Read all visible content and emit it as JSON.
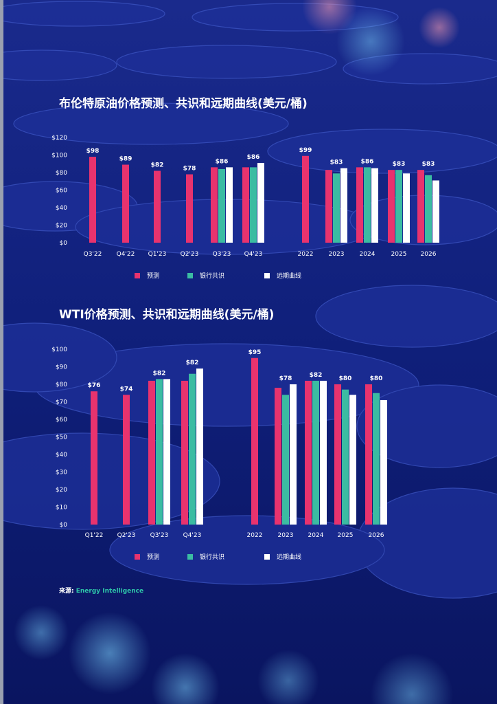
{
  "colors": {
    "forecast": "#e8336e",
    "consensus": "#3bbca2",
    "forward": "#ffffff"
  },
  "source": {
    "label": "来源:",
    "value": "Energy Intelligence"
  },
  "chart_data": [
    {
      "type": "bar",
      "title": "布伦特原油价格预测、共识和远期曲线(美元/桶)",
      "categories": [
        "Q3'22",
        "Q4'22",
        "Q1'23",
        "Q2'23",
        "Q3'23",
        "Q4'23",
        "2022",
        "2023",
        "2024",
        "2025",
        "2026"
      ],
      "yticks": [
        "$0",
        "$20",
        "$40",
        "$60",
        "$80",
        "$100",
        "$120"
      ],
      "ylim": [
        0,
        120
      ],
      "series": [
        {
          "name": "预测",
          "values": [
            98,
            89,
            82,
            78,
            86,
            86,
            99,
            83,
            86,
            83,
            83
          ]
        },
        {
          "name": "银行共识",
          "values": [
            null,
            null,
            null,
            null,
            84,
            86,
            null,
            79,
            86,
            83,
            77
          ]
        },
        {
          "name": "远期曲线",
          "values": [
            null,
            null,
            null,
            null,
            86,
            91,
            null,
            85,
            85,
            79,
            71
          ]
        }
      ],
      "data_labels": [
        "$98",
        "$89",
        "$82",
        "$78",
        "$86",
        "$86",
        "$99",
        "$83",
        "$86",
        "$83",
        "$83"
      ],
      "legend": "bottom"
    },
    {
      "type": "bar",
      "title": "WTI价格预测、共识和远期曲线(美元/桶)",
      "categories": [
        "Q1'22",
        "Q2'23",
        "Q3'23",
        "Q4'23",
        "2022",
        "2023",
        "2024",
        "2025",
        "2026"
      ],
      "yticks": [
        "$0",
        "$10",
        "$20",
        "$30",
        "$40",
        "$50",
        "$60",
        "$70",
        "$80",
        "$90",
        "$100"
      ],
      "ylim": [
        0,
        100
      ],
      "series": [
        {
          "name": "预测",
          "values": [
            76,
            74,
            82,
            82,
            95,
            78,
            82,
            80,
            80
          ]
        },
        {
          "name": "银行共识",
          "values": [
            null,
            null,
            83,
            86,
            null,
            74,
            82,
            77,
            75
          ]
        },
        {
          "name": "远期曲线",
          "values": [
            null,
            null,
            83,
            89,
            null,
            80,
            82,
            74,
            71
          ]
        }
      ],
      "data_labels": [
        "$76",
        "$74",
        "$82",
        "$82",
        "$95",
        "$78",
        "$82",
        "$80",
        "$80"
      ],
      "legend": "bottom"
    }
  ]
}
